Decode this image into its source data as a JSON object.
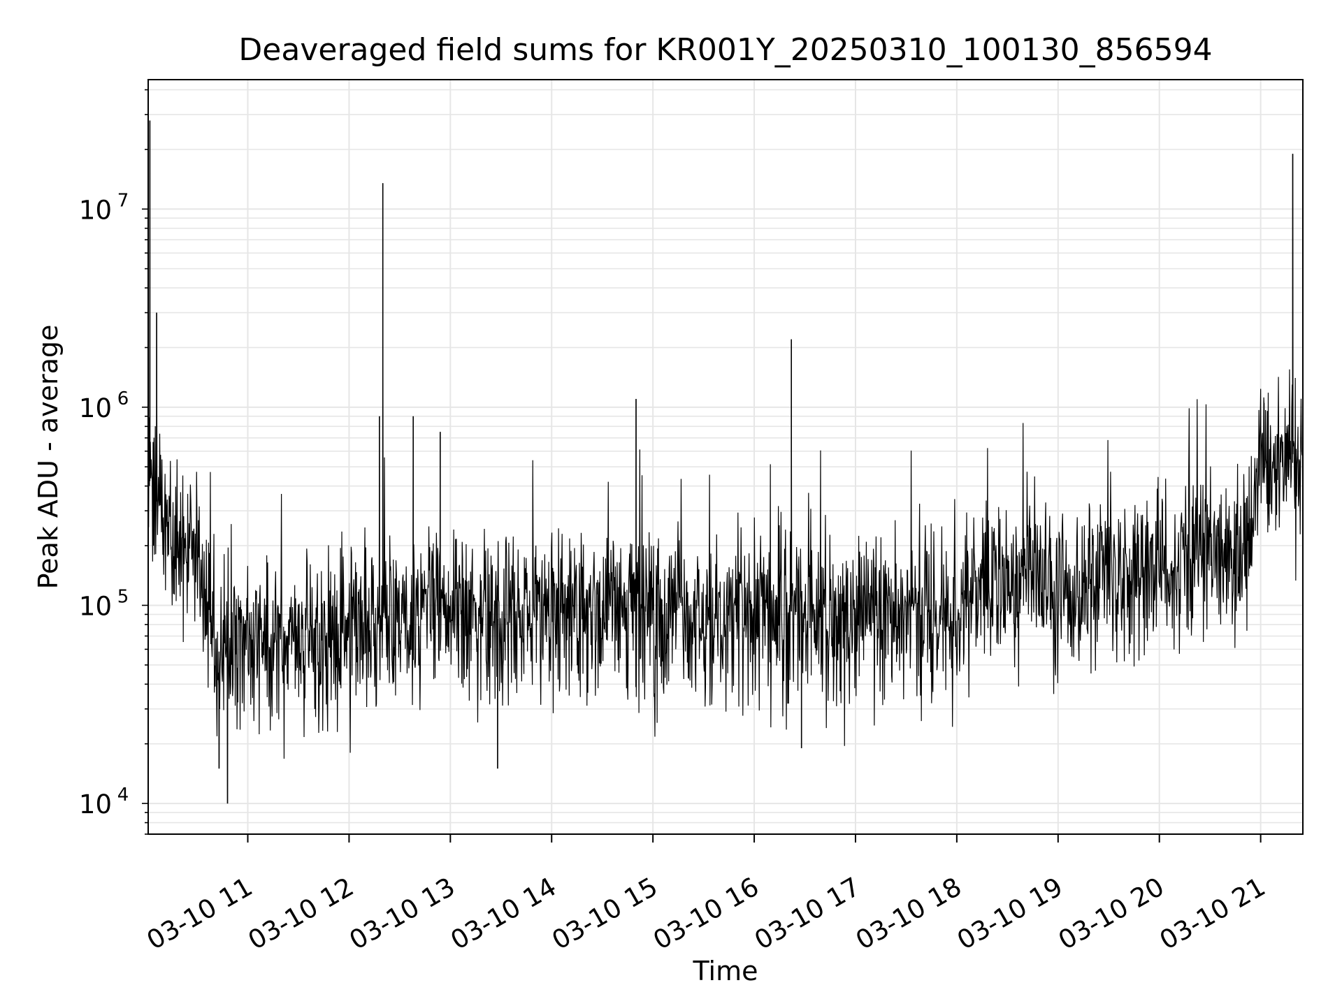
{
  "chart_data": {
    "type": "line",
    "title": "Deaveraged field sums for KR001Y_20250310_100130_856594",
    "xlabel": "Time",
    "ylabel": "Peak ADU - average",
    "y_scale": "log",
    "ylim": [
      7000,
      45000000
    ],
    "xlim": [
      "2025-03-10 10:01",
      "2025-03-10 21:25"
    ],
    "grid": true,
    "grid_color": "#e6e6e6",
    "line_color": "#000000",
    "x_ticks": [
      "03-10 11",
      "03-10 12",
      "03-10 13",
      "03-10 14",
      "03-10 15",
      "03-10 16",
      "03-10 17",
      "03-10 18",
      "03-10 19",
      "03-10 20",
      "03-10 21"
    ],
    "y_ticks": [
      {
        "base": "10",
        "exp": "4",
        "value": 10000
      },
      {
        "base": "10",
        "exp": "5",
        "value": 100000
      },
      {
        "base": "10",
        "exp": "6",
        "value": 1000000
      },
      {
        "base": "10",
        "exp": "7",
        "value": 10000000
      }
    ],
    "series": [
      {
        "x": [
          "2025-03-10 10:01",
          "2025-03-10 10:05",
          "2025-03-10 10:15",
          "2025-03-10 10:30",
          "2025-03-10 10:40",
          "2025-03-10 10:50",
          "2025-03-10 11:00",
          "2025-03-10 11:15",
          "2025-03-10 11:30",
          "2025-03-10 11:45",
          "2025-03-10 12:00",
          "2025-03-10 12:15",
          "2025-03-10 12:30",
          "2025-03-10 12:45",
          "2025-03-10 13:00",
          "2025-03-10 13:30",
          "2025-03-10 14:00",
          "2025-03-10 14:30",
          "2025-03-10 15:00",
          "2025-03-10 15:30",
          "2025-03-10 16:00",
          "2025-03-10 16:30",
          "2025-03-10 17:00",
          "2025-03-10 17:30",
          "2025-03-10 18:00",
          "2025-03-10 18:30",
          "2025-03-10 18:50",
          "2025-03-10 19:00",
          "2025-03-10 19:10",
          "2025-03-10 19:30",
          "2025-03-10 20:00",
          "2025-03-10 20:30",
          "2025-03-10 20:50",
          "2025-03-10 21:00",
          "2025-03-10 21:10",
          "2025-03-10 21:25"
        ],
        "y": [
          600000,
          350000,
          220000,
          160000,
          60000,
          55000,
          60000,
          65000,
          65000,
          65000,
          72000,
          85000,
          92000,
          95000,
          90000,
          85000,
          92000,
          95000,
          90000,
          85000,
          88000,
          95000,
          80000,
          85000,
          100000,
          130000,
          150000,
          95000,
          100000,
          150000,
          160000,
          180000,
          170000,
          500000,
          550000,
          600000
        ]
      }
    ],
    "spikes": [
      {
        "x": "2025-03-10 10:02",
        "y": 28000000
      },
      {
        "x": "2025-03-10 10:06",
        "y": 3000000
      },
      {
        "x": "2025-03-10 12:18",
        "y": 900000
      },
      {
        "x": "2025-03-10 12:20",
        "y": 13500000
      },
      {
        "x": "2025-03-10 12:38",
        "y": 900000
      },
      {
        "x": "2025-03-10 12:54",
        "y": 750000
      },
      {
        "x": "2025-03-10 14:50",
        "y": 1100000
      },
      {
        "x": "2025-03-10 16:22",
        "y": 2200000
      },
      {
        "x": "2025-03-10 21:02",
        "y": 1050000
      },
      {
        "x": "2025-03-10 21:19",
        "y": 19000000
      }
    ],
    "dips": [
      {
        "x": "2025-03-10 10:48",
        "y": 10000
      },
      {
        "x": "2025-03-10 10:43",
        "y": 15000
      },
      {
        "x": "2025-03-10 13:28",
        "y": 15000
      },
      {
        "x": "2025-03-10 16:28",
        "y": 19000
      }
    ]
  }
}
